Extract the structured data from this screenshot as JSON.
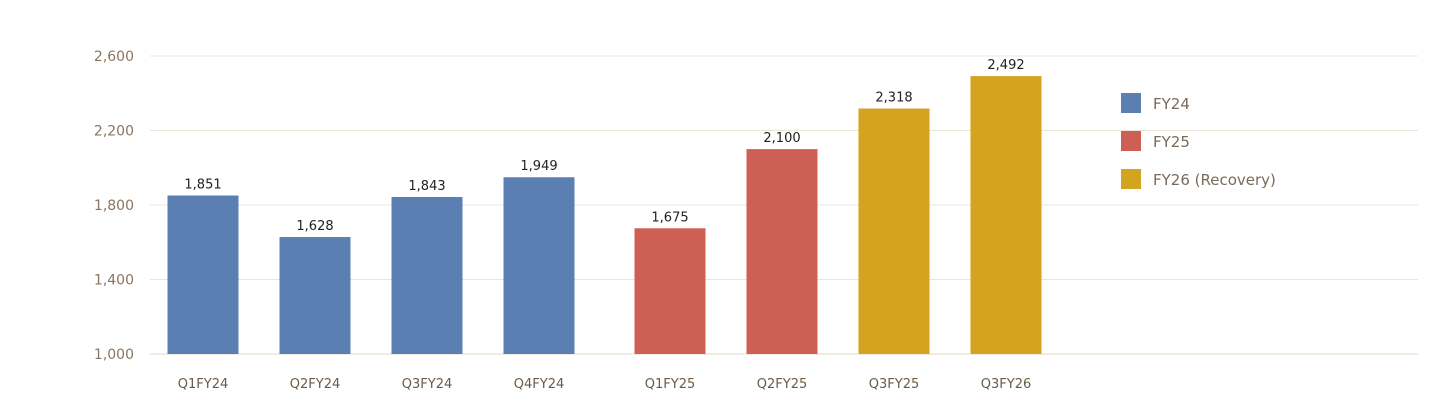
{
  "chart_data": {
    "type": "bar",
    "title": "",
    "xlabel": "",
    "ylabel": "",
    "ylim": [
      1000,
      2600
    ],
    "yticks": [
      1000,
      1400,
      1800,
      2200,
      2600
    ],
    "ytick_labels": [
      "1,000",
      "1,400",
      "1,800",
      "2,200",
      "2,600"
    ],
    "grid": true,
    "legend_position": "right",
    "categories": [
      "Q1FY24",
      "Q2FY24",
      "Q3FY24",
      "Q4FY24",
      "Q1FY25",
      "Q2FY25",
      "Q3FY25",
      "Q3FY26"
    ],
    "values": [
      1851,
      1628,
      1843,
      1949,
      1675,
      2100,
      2318,
      2492
    ],
    "value_labels": [
      "1,851",
      "1,628",
      "1,843",
      "1,949",
      "1,675",
      "2,100",
      "2,318",
      "2,492"
    ],
    "bar_series": [
      "FY24",
      "FY24",
      "FY24",
      "FY24",
      "FY25",
      "FY25",
      "FY26 (Recovery)",
      "FY26 (Recovery)"
    ],
    "series": [
      {
        "name": "FY24",
        "color": "#5b7fb3"
      },
      {
        "name": "FY25",
        "color": "#cd5f55"
      },
      {
        "name": "FY26 (Recovery)",
        "color": "#d4a320"
      }
    ],
    "grid_color": "#ece6d8"
  }
}
